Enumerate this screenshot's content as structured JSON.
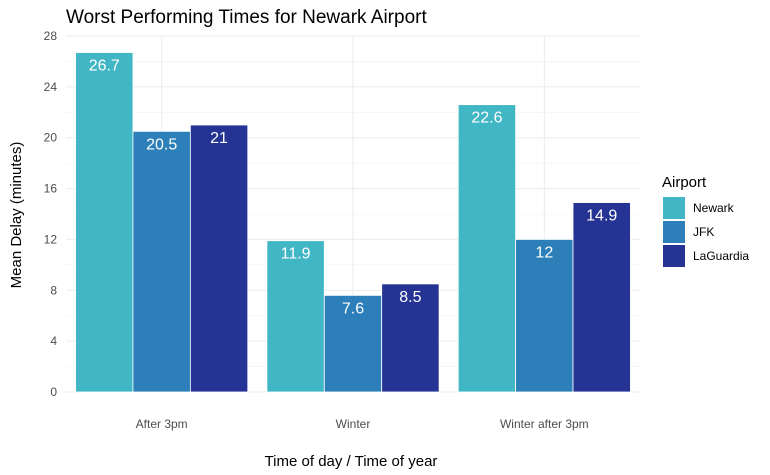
{
  "chart_data": {
    "type": "bar",
    "title": "Worst Performing Times for Newark Airport",
    "xlabel": "Time of day / Time of year",
    "ylabel": "Mean Delay (minutes)",
    "categories": [
      "After 3pm",
      "Winter",
      "Winter after 3pm"
    ],
    "series": [
      {
        "name": "Newark",
        "color": "#41b6c4",
        "values": [
          26.7,
          11.9,
          22.6
        ],
        "labels": [
          "26.7",
          "11.9",
          "22.6"
        ]
      },
      {
        "name": "JFK",
        "color": "#2c7fb8",
        "values": [
          20.5,
          7.6,
          12
        ],
        "labels": [
          "20.5",
          "7.6",
          "12"
        ]
      },
      {
        "name": "LaGuardia",
        "color": "#253494",
        "values": [
          21,
          8.5,
          14.9
        ],
        "labels": [
          "21",
          "8.5",
          "14.9"
        ]
      }
    ],
    "ylim": [
      0,
      28
    ],
    "yticks": [
      0,
      4,
      8,
      12,
      16,
      20,
      24,
      28
    ],
    "grid": true,
    "legend": {
      "title": "Airport",
      "position": "right"
    }
  }
}
